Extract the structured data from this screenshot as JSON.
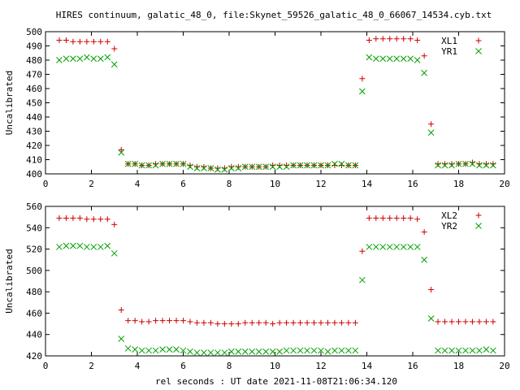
{
  "title": "HIRES continuum, galatic_48_0, file:Skynet_59526_galatic_48_0_66067_14534.cyb.txt",
  "xlabel": "rel seconds : UT date 2021-11-08T21:06:34.120",
  "chart_data": [
    {
      "type": "scatter",
      "ylabel": "Uncalibrated",
      "xlim": [
        0,
        20
      ],
      "ylim": [
        400,
        500
      ],
      "xticks": [
        0,
        2,
        4,
        6,
        8,
        10,
        12,
        14,
        16,
        18,
        20
      ],
      "yticks": [
        400,
        410,
        420,
        430,
        440,
        450,
        460,
        470,
        480,
        490,
        500
      ],
      "legend_position": "top-right",
      "series": [
        {
          "name": "XL1",
          "marker": "+",
          "color": "#cc0000",
          "x": [
            0.6,
            0.9,
            1.2,
            1.5,
            1.8,
            2.1,
            2.4,
            2.7,
            3.0,
            3.3,
            3.6,
            3.9,
            4.2,
            4.5,
            4.8,
            5.1,
            5.4,
            5.7,
            6.0,
            6.3,
            6.6,
            6.9,
            7.2,
            7.5,
            7.8,
            8.1,
            8.4,
            8.7,
            9.0,
            9.3,
            9.6,
            9.9,
            10.2,
            10.5,
            10.8,
            11.1,
            11.4,
            11.7,
            12.0,
            12.3,
            12.6,
            12.9,
            13.2,
            13.5,
            13.8,
            14.1,
            14.4,
            14.7,
            15.0,
            15.3,
            15.6,
            15.9,
            16.2,
            16.5,
            16.8,
            17.1,
            17.4,
            17.7,
            18.0,
            18.3,
            18.6,
            18.9,
            19.2,
            19.5
          ],
          "y": [
            494,
            494,
            493,
            493,
            493,
            493,
            493,
            493,
            488,
            417,
            407,
            407,
            406,
            406,
            407,
            407,
            407,
            407,
            407,
            406,
            405,
            405,
            404,
            404,
            404,
            405,
            405,
            405,
            405,
            405,
            405,
            406,
            406,
            406,
            406,
            406,
            406,
            406,
            406,
            406,
            406,
            406,
            406,
            406,
            467,
            494,
            495,
            495,
            495,
            495,
            495,
            495,
            494,
            483,
            435,
            407,
            407,
            407,
            407,
            407,
            408,
            407,
            407,
            407
          ]
        },
        {
          "name": "YR1",
          "marker": "x",
          "color": "#00a000",
          "x": [
            0.6,
            0.9,
            1.2,
            1.5,
            1.8,
            2.1,
            2.4,
            2.7,
            3.0,
            3.3,
            3.6,
            3.9,
            4.2,
            4.5,
            4.8,
            5.1,
            5.4,
            5.7,
            6.0,
            6.3,
            6.6,
            6.9,
            7.2,
            7.5,
            7.8,
            8.1,
            8.4,
            8.7,
            9.0,
            9.3,
            9.6,
            9.9,
            10.2,
            10.5,
            10.8,
            11.1,
            11.4,
            11.7,
            12.0,
            12.3,
            12.6,
            12.9,
            13.2,
            13.5,
            13.8,
            14.1,
            14.4,
            14.7,
            15.0,
            15.3,
            15.6,
            15.9,
            16.2,
            16.5,
            16.8,
            17.1,
            17.4,
            17.7,
            18.0,
            18.3,
            18.6,
            18.9,
            19.2,
            19.5
          ],
          "y": [
            480,
            481,
            481,
            481,
            482,
            481,
            481,
            482,
            477,
            415,
            407,
            407,
            406,
            406,
            406,
            407,
            407,
            407,
            407,
            405,
            404,
            404,
            404,
            403,
            403,
            404,
            404,
            405,
            405,
            405,
            405,
            405,
            405,
            405,
            406,
            406,
            406,
            406,
            406,
            406,
            407,
            407,
            406,
            406,
            458,
            482,
            481,
            481,
            481,
            481,
            481,
            481,
            480,
            471,
            429,
            406,
            406,
            406,
            407,
            407,
            407,
            406,
            406,
            406
          ]
        }
      ]
    },
    {
      "type": "scatter",
      "ylabel": "Uncalibrated",
      "xlim": [
        0,
        20
      ],
      "ylim": [
        420,
        560
      ],
      "xticks": [
        0,
        2,
        4,
        6,
        8,
        10,
        12,
        14,
        16,
        18,
        20
      ],
      "yticks": [
        420,
        440,
        460,
        480,
        500,
        520,
        540,
        560
      ],
      "legend_position": "top-right",
      "series": [
        {
          "name": "XL2",
          "marker": "+",
          "color": "#cc0000",
          "x": [
            0.6,
            0.9,
            1.2,
            1.5,
            1.8,
            2.1,
            2.4,
            2.7,
            3.0,
            3.3,
            3.6,
            3.9,
            4.2,
            4.5,
            4.8,
            5.1,
            5.4,
            5.7,
            6.0,
            6.3,
            6.6,
            6.9,
            7.2,
            7.5,
            7.8,
            8.1,
            8.4,
            8.7,
            9.0,
            9.3,
            9.6,
            9.9,
            10.2,
            10.5,
            10.8,
            11.1,
            11.4,
            11.7,
            12.0,
            12.3,
            12.6,
            12.9,
            13.2,
            13.5,
            13.8,
            14.1,
            14.4,
            14.7,
            15.0,
            15.3,
            15.6,
            15.9,
            16.2,
            16.5,
            16.8,
            17.1,
            17.4,
            17.7,
            18.0,
            18.3,
            18.6,
            18.9,
            19.2,
            19.5
          ],
          "y": [
            549,
            549,
            549,
            549,
            548,
            548,
            548,
            548,
            543,
            463,
            453,
            453,
            452,
            452,
            453,
            453,
            453,
            453,
            453,
            452,
            451,
            451,
            451,
            450,
            450,
            450,
            450,
            451,
            451,
            451,
            451,
            450,
            451,
            451,
            451,
            451,
            451,
            451,
            451,
            451,
            451,
            451,
            451,
            451,
            518,
            549,
            549,
            549,
            549,
            549,
            549,
            549,
            548,
            536,
            482,
            452,
            452,
            452,
            452,
            452,
            452,
            452,
            452,
            452
          ]
        },
        {
          "name": "YR2",
          "marker": "x",
          "color": "#00a000",
          "x": [
            0.6,
            0.9,
            1.2,
            1.5,
            1.8,
            2.1,
            2.4,
            2.7,
            3.0,
            3.3,
            3.6,
            3.9,
            4.2,
            4.5,
            4.8,
            5.1,
            5.4,
            5.7,
            6.0,
            6.3,
            6.6,
            6.9,
            7.2,
            7.5,
            7.8,
            8.1,
            8.4,
            8.7,
            9.0,
            9.3,
            9.6,
            9.9,
            10.2,
            10.5,
            10.8,
            11.1,
            11.4,
            11.7,
            12.0,
            12.3,
            12.6,
            12.9,
            13.2,
            13.5,
            13.8,
            14.1,
            14.4,
            14.7,
            15.0,
            15.3,
            15.6,
            15.9,
            16.2,
            16.5,
            16.8,
            17.1,
            17.4,
            17.7,
            18.0,
            18.3,
            18.6,
            18.9,
            19.2,
            19.5
          ],
          "y": [
            522,
            523,
            523,
            523,
            522,
            522,
            522,
            523,
            516,
            436,
            427,
            426,
            425,
            425,
            425,
            426,
            426,
            426,
            425,
            424,
            423,
            423,
            423,
            423,
            423,
            424,
            424,
            424,
            424,
            424,
            424,
            424,
            424,
            425,
            425,
            425,
            425,
            425,
            425,
            424,
            425,
            425,
            425,
            425,
            491,
            522,
            522,
            522,
            522,
            522,
            522,
            522,
            522,
            510,
            455,
            425,
            425,
            425,
            425,
            425,
            425,
            425,
            426,
            425
          ]
        }
      ]
    }
  ]
}
